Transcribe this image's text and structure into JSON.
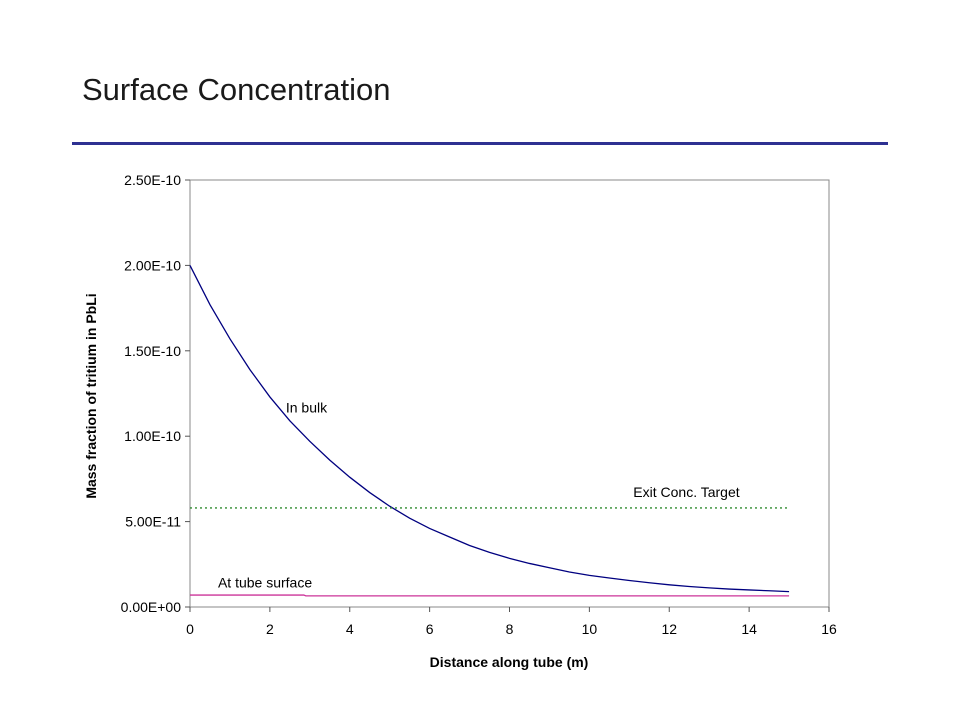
{
  "slide": {
    "title": "Surface Concentration",
    "rule_color": "#2e3192"
  },
  "chart_data": {
    "type": "line",
    "title": "",
    "xlabel": "Distance along tube (m)",
    "ylabel": "Mass fraction of tritium in PbLi",
    "xlim": [
      0,
      16
    ],
    "ylim": [
      0,
      2.5e-10
    ],
    "x_ticks": [
      0,
      2,
      4,
      6,
      8,
      10,
      12,
      14,
      16
    ],
    "x_tick_labels": [
      "0",
      "2",
      "4",
      "6",
      "8",
      "10",
      "12",
      "14",
      "16"
    ],
    "y_ticks": [
      0,
      5e-11,
      1e-10,
      1.5e-10,
      2e-10,
      2.5e-10
    ],
    "y_tick_labels": [
      "0.00E+00",
      "5.00E-11",
      "1.00E-10",
      "1.50E-10",
      "2.00E-10",
      "2.50E-10"
    ],
    "grid": false,
    "series": [
      {
        "name": "In bulk",
        "color": "#000080",
        "style": "solid",
        "x": [
          0,
          0.5,
          1,
          1.5,
          2,
          2.5,
          3,
          3.5,
          4,
          4.5,
          5,
          5.5,
          6,
          6.5,
          7,
          7.5,
          8,
          8.5,
          9,
          9.5,
          10,
          10.5,
          11,
          11.5,
          12,
          12.5,
          13,
          13.5,
          14,
          14.5,
          15
        ],
        "y": [
          2e-10,
          1.77e-10,
          1.57e-10,
          1.39e-10,
          1.23e-10,
          1.09e-10,
          9.7e-11,
          8.6e-11,
          7.6e-11,
          6.7e-11,
          5.9e-11,
          5.2e-11,
          4.6e-11,
          4.1e-11,
          3.6e-11,
          3.2e-11,
          2.85e-11,
          2.55e-11,
          2.3e-11,
          2.05e-11,
          1.85e-11,
          1.7e-11,
          1.55e-11,
          1.42e-11,
          1.3e-11,
          1.2e-11,
          1.12e-11,
          1.05e-11,
          1e-11,
          9.5e-12,
          9e-12
        ]
      },
      {
        "name": "Exit Conc. Target",
        "color": "#2e8b2e",
        "style": "dotted",
        "x": [
          0,
          15
        ],
        "y": [
          5.8e-11,
          5.8e-11
        ]
      },
      {
        "name": "At tube surface",
        "color": "#cc3399",
        "style": "solid",
        "x": [
          0,
          2.85,
          2.9,
          15
        ],
        "y": [
          7e-12,
          7e-12,
          6.5e-12,
          6.5e-12
        ]
      }
    ],
    "annotations": [
      {
        "text": "In bulk",
        "x": 2.4,
        "y": 1.14e-10
      },
      {
        "text": "Exit Conc. Target",
        "x": 11.1,
        "y": 6.45e-11
      },
      {
        "text": "At tube surface",
        "x": 0.7,
        "y": 1.15e-11
      }
    ]
  }
}
